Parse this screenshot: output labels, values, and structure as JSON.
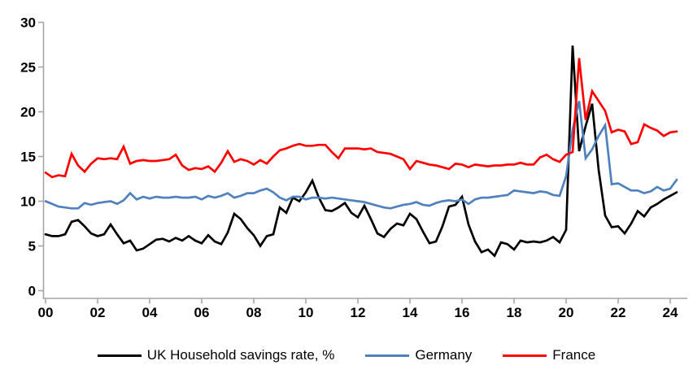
{
  "chart_data": {
    "type": "line",
    "title": "",
    "x_start": 2000,
    "x_step": 0.25,
    "grid": "off",
    "legend_position": "bottom",
    "axis_color": "#a6a6a6",
    "label_color": "#000000",
    "x_axis": {
      "tick_years": [
        2000,
        2002,
        2004,
        2006,
        2008,
        2010,
        2012,
        2014,
        2016,
        2018,
        2020,
        2022,
        2024
      ],
      "tick_labels": [
        "00",
        "02",
        "04",
        "06",
        "08",
        "10",
        "12",
        "14",
        "16",
        "18",
        "20",
        "22",
        "24"
      ]
    },
    "y_axis": {
      "min": 0,
      "max": 30,
      "tick_step": 5,
      "ticks": [
        0,
        5,
        10,
        15,
        20,
        25,
        30
      ],
      "tick_labels": [
        "0",
        "5",
        "10",
        "15",
        "20",
        "25",
        "30"
      ]
    },
    "series": [
      {
        "name": "UK Household savings rate, %",
        "color": "#000000",
        "values": [
          6.3,
          6.1,
          6.1,
          6.3,
          7.7,
          7.9,
          7.2,
          6.4,
          6.1,
          6.3,
          7.4,
          6.3,
          5.3,
          5.6,
          4.5,
          4.7,
          5.2,
          5.7,
          5.8,
          5.5,
          5.9,
          5.6,
          6.1,
          5.6,
          5.3,
          6.2,
          5.5,
          5.2,
          6.5,
          8.6,
          8.0,
          7.0,
          6.2,
          5.0,
          6.1,
          6.3,
          9.3,
          8.7,
          10.4,
          10.0,
          11.0,
          12.3,
          10.4,
          9.0,
          8.9,
          9.3,
          9.8,
          8.7,
          8.2,
          9.5,
          8.0,
          6.4,
          6.0,
          6.9,
          7.5,
          7.3,
          8.6,
          8.0,
          6.6,
          5.3,
          5.5,
          7.2,
          9.4,
          9.6,
          10.5,
          7.4,
          5.5,
          4.3,
          4.6,
          3.9,
          5.4,
          5.2,
          4.6,
          5.6,
          5.4,
          5.5,
          5.4,
          5.6,
          6.0,
          5.4,
          6.8,
          27.4,
          15.6,
          18.4,
          20.9,
          13.5,
          8.4,
          7.1,
          7.2,
          6.4,
          7.5,
          8.9,
          8.3,
          9.3,
          9.7,
          10.2,
          10.6,
          11.0
        ]
      },
      {
        "name": "Germany",
        "color": "#4f81bd",
        "values": [
          10.0,
          9.7,
          9.4,
          9.3,
          9.2,
          9.2,
          9.8,
          9.6,
          9.8,
          9.9,
          10.0,
          9.7,
          10.1,
          10.9,
          10.2,
          10.5,
          10.3,
          10.5,
          10.4,
          10.4,
          10.5,
          10.4,
          10.4,
          10.5,
          10.2,
          10.6,
          10.4,
          10.6,
          10.9,
          10.4,
          10.6,
          10.9,
          10.9,
          11.2,
          11.4,
          11.0,
          10.4,
          10.1,
          10.5,
          10.5,
          10.2,
          10.4,
          10.4,
          10.3,
          10.4,
          10.3,
          10.2,
          10.1,
          10.0,
          9.9,
          9.7,
          9.5,
          9.3,
          9.2,
          9.4,
          9.6,
          9.7,
          9.9,
          9.6,
          9.5,
          9.8,
          10.0,
          10.1,
          10.0,
          10.2,
          9.7,
          10.2,
          10.4,
          10.4,
          10.5,
          10.6,
          10.7,
          11.2,
          11.1,
          11.0,
          10.9,
          11.1,
          11.0,
          10.7,
          10.6,
          12.8,
          18.0,
          21.2,
          14.8,
          15.8,
          17.3,
          18.5,
          11.9,
          12.0,
          11.6,
          11.2,
          11.2,
          10.9,
          11.1,
          11.6,
          11.2,
          11.4,
          12.4
        ]
      },
      {
        "name": "France",
        "color": "#ff0000",
        "values": [
          13.2,
          12.7,
          12.9,
          12.8,
          15.3,
          14.0,
          13.3,
          14.2,
          14.8,
          14.7,
          14.8,
          14.7,
          16.1,
          14.2,
          14.5,
          14.6,
          14.5,
          14.5,
          14.6,
          14.7,
          15.2,
          14.0,
          13.5,
          13.7,
          13.6,
          13.9,
          13.3,
          14.3,
          15.6,
          14.4,
          14.7,
          14.5,
          14.1,
          14.6,
          14.2,
          15.0,
          15.7,
          15.9,
          16.2,
          16.4,
          16.2,
          16.2,
          16.3,
          16.3,
          15.5,
          14.8,
          15.9,
          15.9,
          15.9,
          15.8,
          15.9,
          15.5,
          15.4,
          15.3,
          15.0,
          14.7,
          13.6,
          14.5,
          14.3,
          14.1,
          14.0,
          13.8,
          13.6,
          14.2,
          14.1,
          13.8,
          14.1,
          14.0,
          13.9,
          14.0,
          14.0,
          14.1,
          14.1,
          14.3,
          14.1,
          14.1,
          14.9,
          15.2,
          14.7,
          14.4,
          15.2,
          15.5,
          26.0,
          19.1,
          22.3,
          21.2,
          20.1,
          17.7,
          18.0,
          17.8,
          16.4,
          16.6,
          18.6,
          18.2,
          17.9,
          17.3,
          17.7,
          17.8
        ]
      }
    ]
  }
}
